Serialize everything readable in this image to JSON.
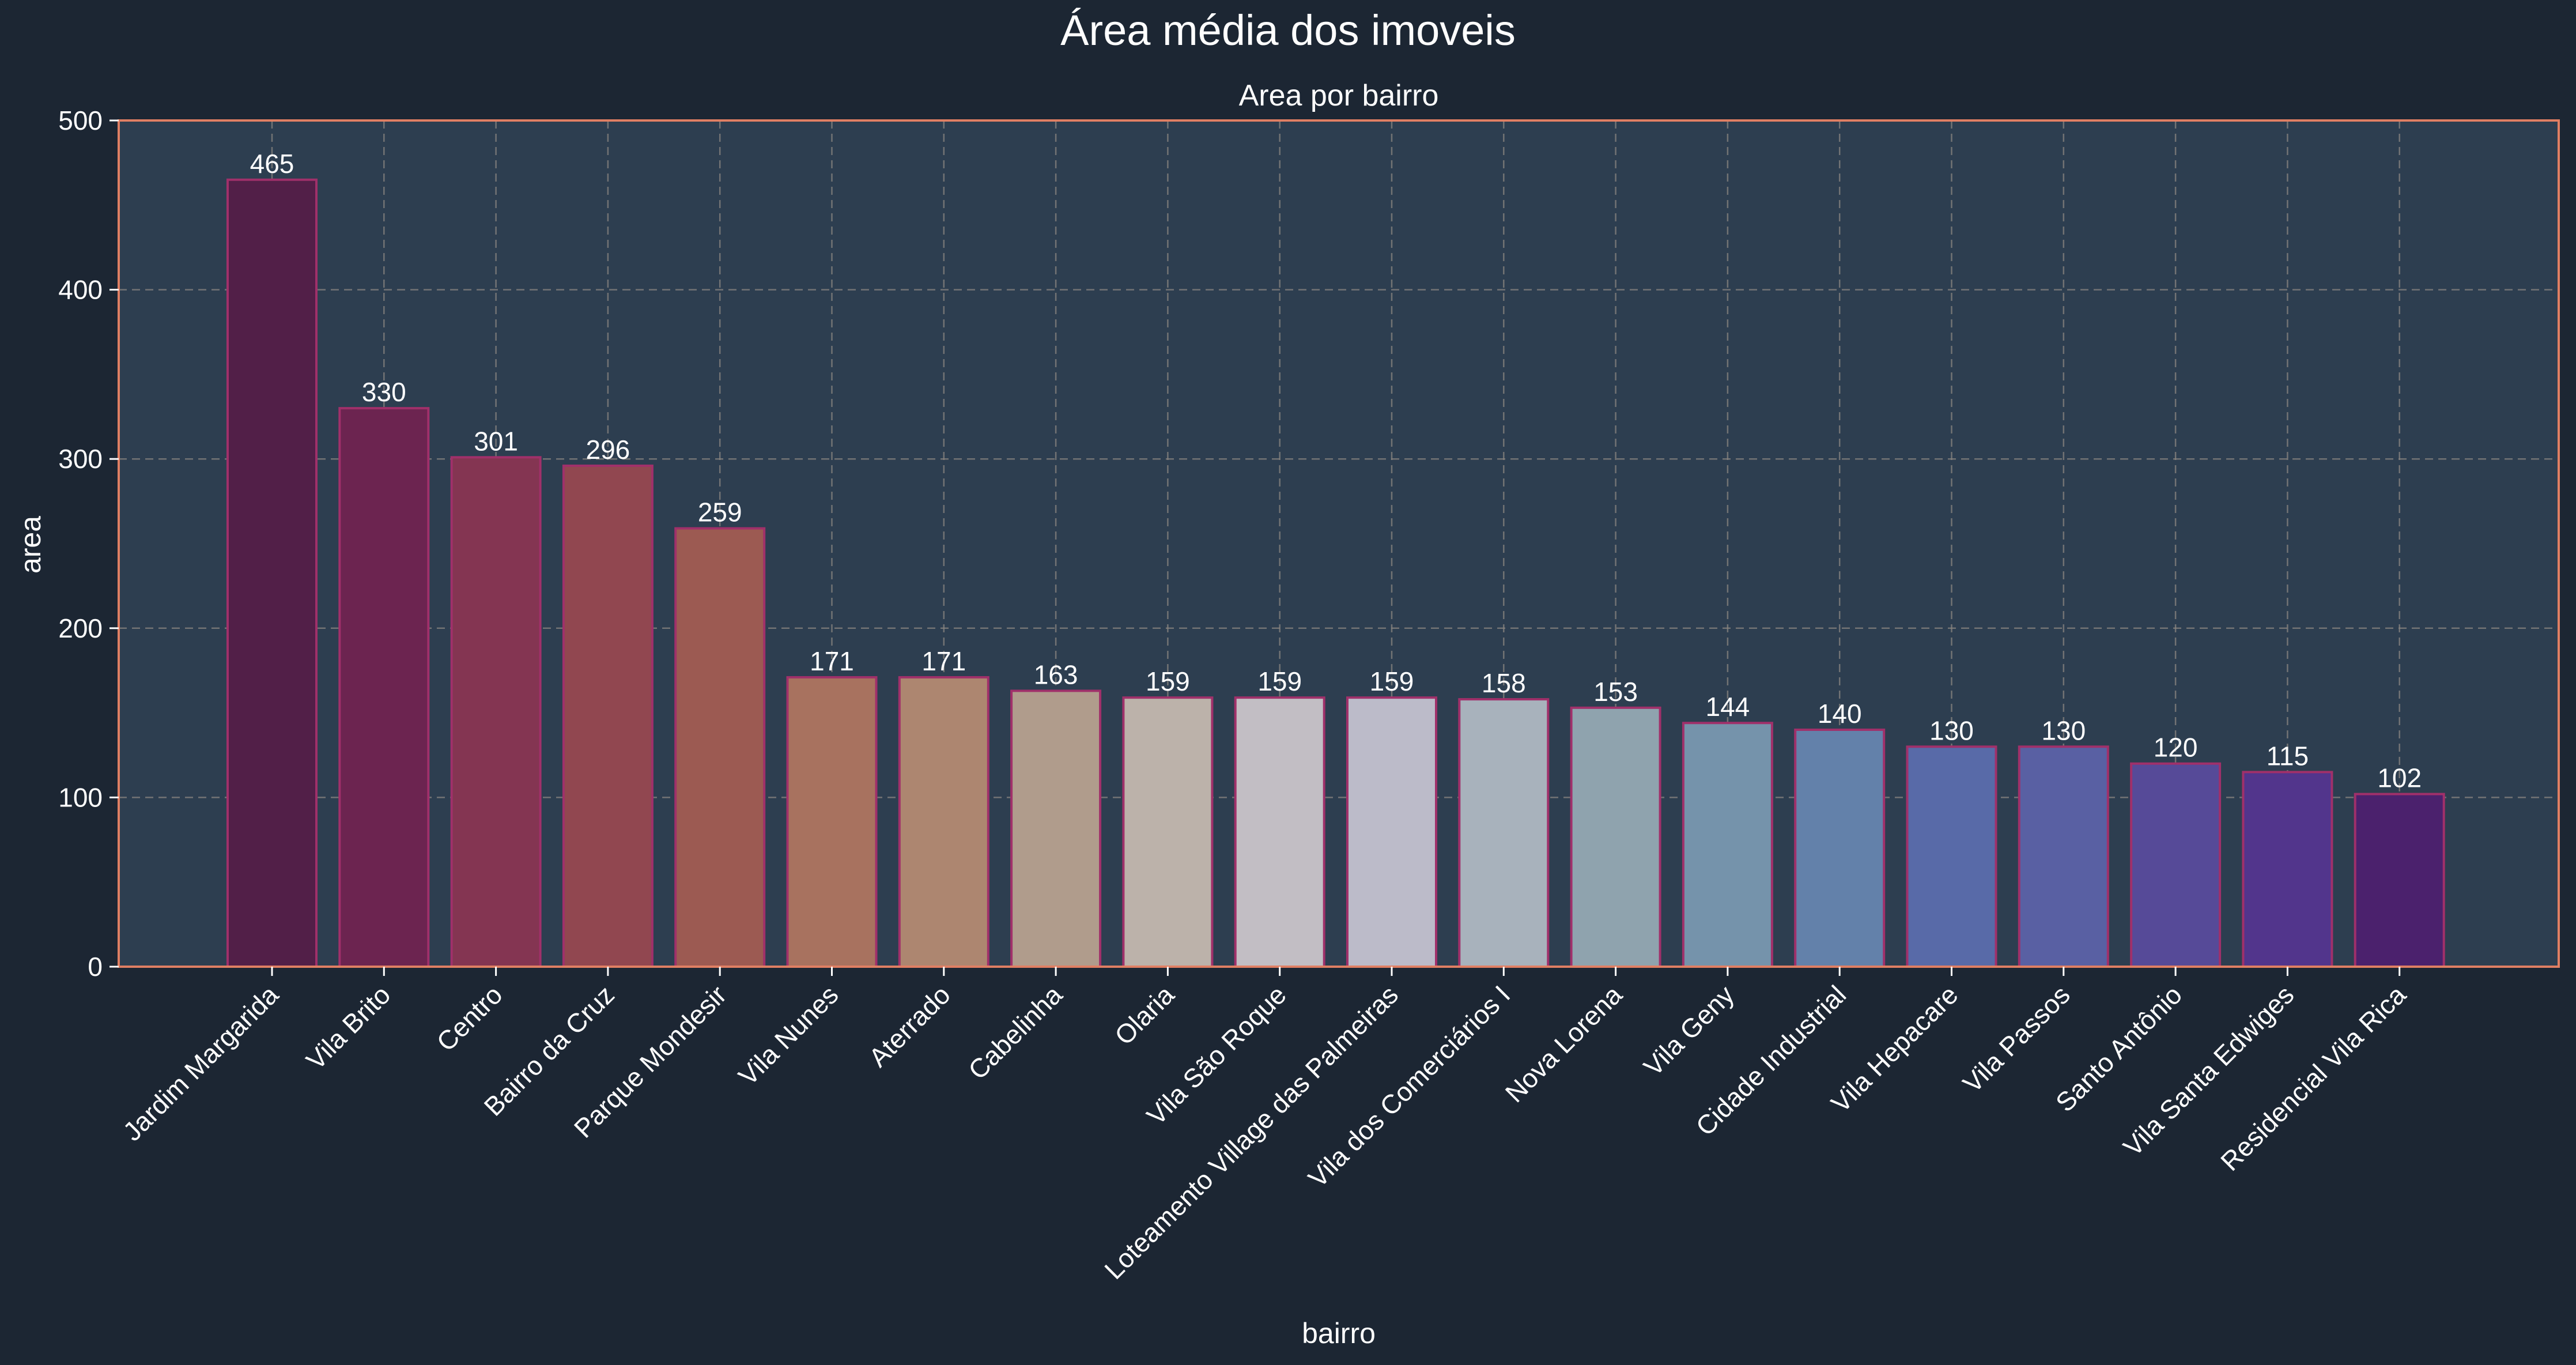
{
  "colors": {
    "background": "#1c2633",
    "plot_background": "#2d3e50",
    "frame": "#e07f63",
    "bar_edge": "#a0306a"
  },
  "chart_data": {
    "type": "bar",
    "suptitle": "Área média dos imoveis",
    "title": "Area por bairro",
    "xlabel": "bairro",
    "ylabel": "area",
    "ylim": [
      0,
      500
    ],
    "yticks": [
      0,
      100,
      200,
      300,
      400,
      500
    ],
    "grid": true,
    "categories": [
      "Jardim Margarida",
      "Vila Brito",
      "Centro",
      "Bairro da Cruz",
      "Parque Mondesir",
      "Vila Nunes",
      "Aterrado",
      "Cabelinha",
      "Olaria",
      "Vila São Roque",
      "Loteamento Village das Palmeiras",
      "Vila dos Comerciários I",
      "Nova Lorena",
      "Vila Geny",
      "Cidade Industrial",
      "Vila Hepacare",
      "Vila Passos",
      "Santo Antônio",
      "Vila Santa Edwiges",
      "Residencial Vila Rica"
    ],
    "values": [
      465,
      330,
      301,
      296,
      259,
      171,
      171,
      163,
      159,
      159,
      159,
      158,
      153,
      144,
      140,
      130,
      130,
      120,
      115,
      102
    ],
    "data_labels": [
      "465",
      "330",
      "301",
      "296",
      "259",
      "171",
      "171",
      "163",
      "159",
      "159",
      "159",
      "158",
      "153",
      "144",
      "140",
      "130",
      "130",
      "120",
      "115",
      "102"
    ],
    "bar_colors": [
      "#521f48",
      "#6c2450",
      "#843552",
      "#914750",
      "#9c5a52",
      "#a8725f",
      "#ad8670",
      "#b09c8c",
      "#bcb2aa",
      "#c2bec4",
      "#bcbbc9",
      "#a8b2bc",
      "#8fa3ae",
      "#7593ab",
      "#6381aa",
      "#586aa8",
      "#5960a3",
      "#564a98",
      "#52358c",
      "#4b216d"
    ]
  }
}
